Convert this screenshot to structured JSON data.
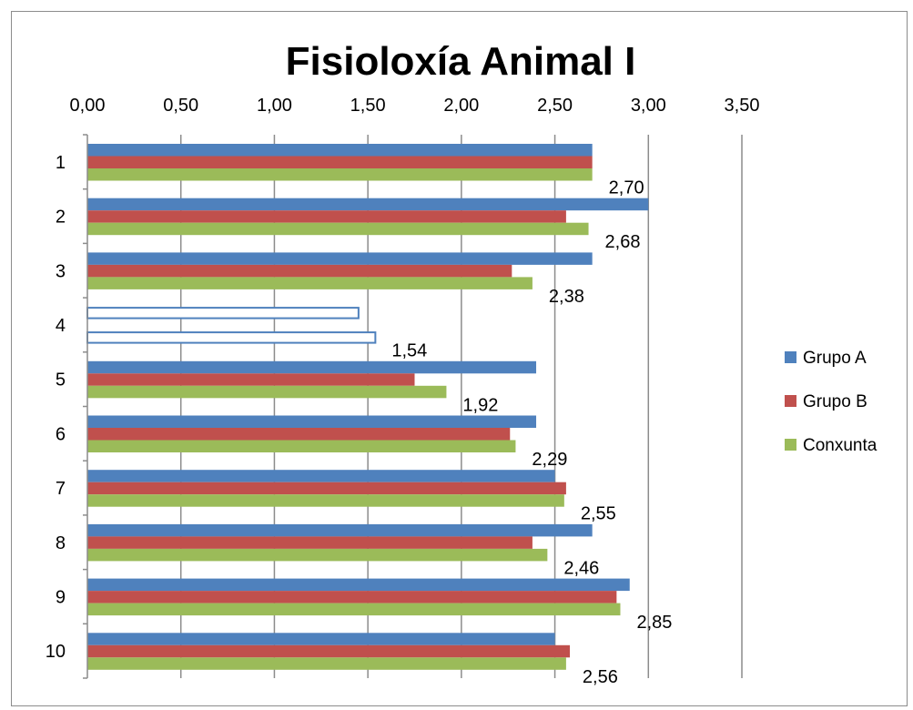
{
  "chart_data": {
    "type": "bar",
    "orientation": "horizontal",
    "title": "Fisioloxía Animal I",
    "categories": [
      "1",
      "2",
      "3",
      "4",
      "5",
      "6",
      "7",
      "8",
      "9",
      "10"
    ],
    "series": [
      {
        "name": "Grupo A",
        "color": "#4f81bd",
        "values": [
          2.7,
          3.0,
          2.7,
          1.45,
          2.4,
          2.4,
          2.5,
          2.7,
          2.9,
          2.5
        ]
      },
      {
        "name": "Grupo B",
        "color": "#c0504d",
        "values": [
          2.7,
          2.56,
          2.27,
          null,
          1.75,
          2.26,
          2.56,
          2.38,
          2.83,
          2.58
        ]
      },
      {
        "name": "Conxunta",
        "color": "#9bbb59",
        "values": [
          2.7,
          2.68,
          2.38,
          1.54,
          1.92,
          2.29,
          2.55,
          2.46,
          2.85,
          2.56
        ]
      }
    ],
    "data_labels": [
      "2,70",
      "2,68",
      "2,38",
      "1,54",
      "1,92",
      "2,29",
      "2,55",
      "2,46",
      "2,85",
      "2,56"
    ],
    "xlim": [
      0,
      3.5
    ],
    "x_ticks": [
      0,
      0.5,
      1.0,
      1.5,
      2.0,
      2.5,
      3.0,
      3.5
    ],
    "x_tick_labels": [
      "0,00",
      "0,50",
      "1,00",
      "1,50",
      "2,00",
      "2,50",
      "3,00",
      "3,50"
    ],
    "x_axis_position": "top",
    "grid": true,
    "legend_position": "right",
    "outlined_category": "4"
  }
}
